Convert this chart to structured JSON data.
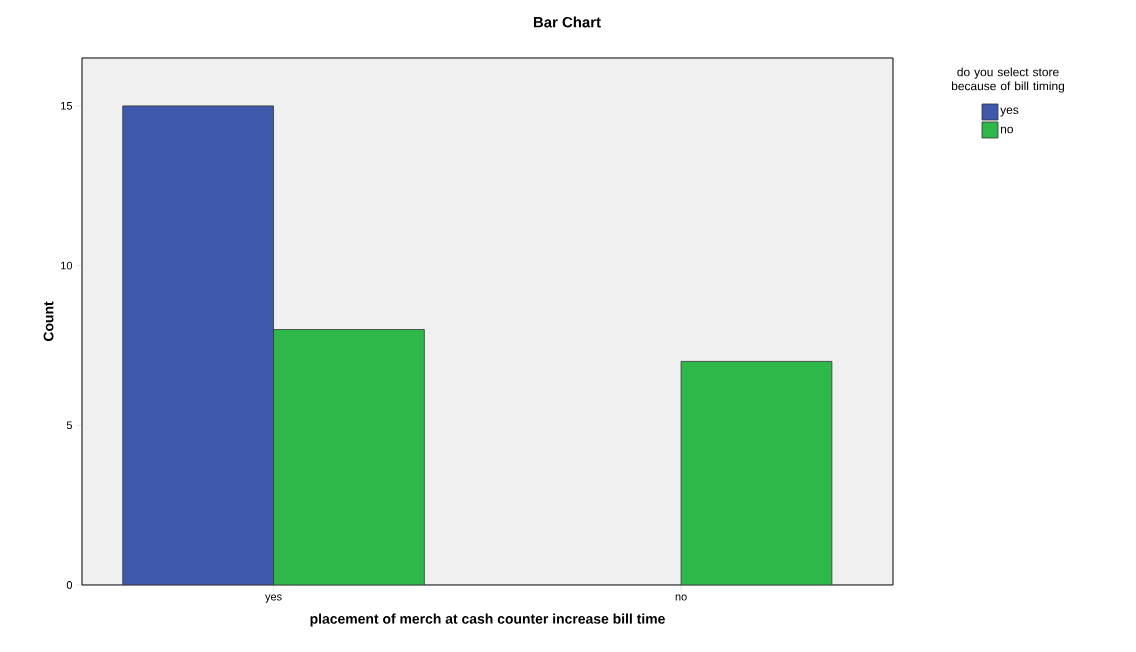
{
  "chart_data": {
    "type": "bar",
    "title": "Bar Chart",
    "xlabel": "placement of merch at cash counter increase bill time",
    "ylabel": "Count",
    "legend_title": "do you select store because of bill timing",
    "categories": [
      "yes",
      "no"
    ],
    "series": [
      {
        "name": "yes",
        "color": "#3e58ac",
        "values": [
          15,
          null
        ]
      },
      {
        "name": "no",
        "color": "#2fb84a",
        "values": [
          8,
          7
        ]
      }
    ],
    "ylim": [
      0,
      16.5
    ],
    "yticks": [
      0,
      5,
      10,
      15
    ],
    "legend": "top right"
  }
}
